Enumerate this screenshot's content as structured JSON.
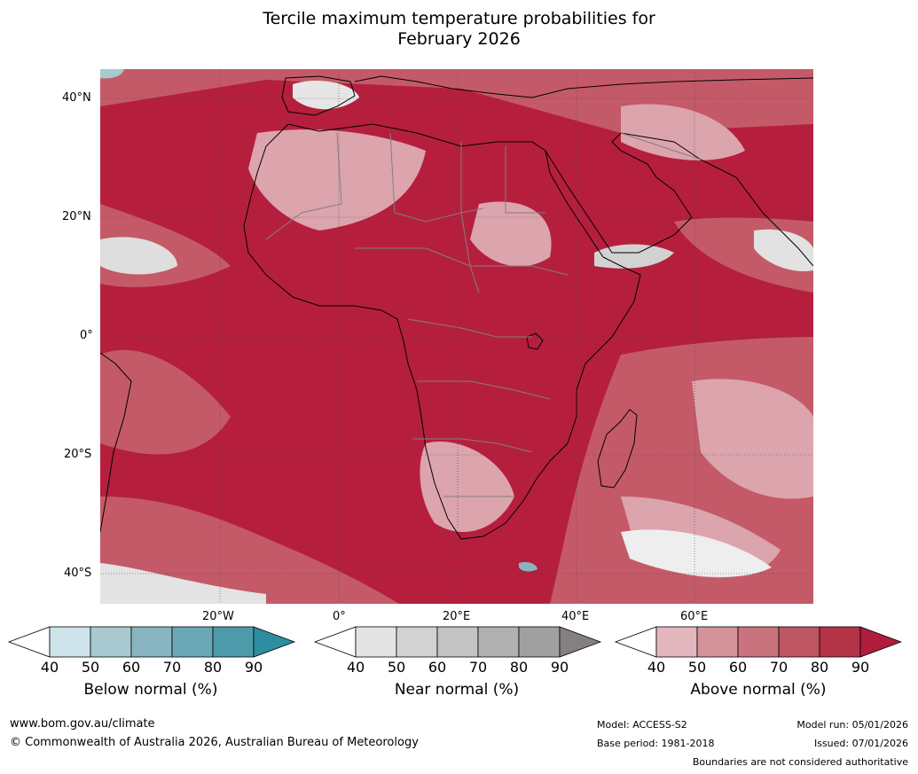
{
  "title_line1": "Tercile maximum temperature probabilities for",
  "title_line2": "February 2026",
  "lat_labels": [
    "40°N",
    "20°N",
    "0°",
    "20°S",
    "40°S"
  ],
  "lon_labels": [
    "20°W",
    "0°",
    "20°E",
    "40°E",
    "60°E"
  ],
  "colorbars": [
    {
      "label": "Below normal (%)",
      "ticks": [
        "40",
        "50",
        "60",
        "70",
        "80",
        "90"
      ],
      "colors": [
        "#ffffff",
        "#cde3e9",
        "#a9c9d0",
        "#89b5c0",
        "#6aa8b6",
        "#4d9aab",
        "#2e8ca3"
      ]
    },
    {
      "label": "Near normal (%)",
      "ticks": [
        "40",
        "50",
        "60",
        "70",
        "80",
        "90"
      ],
      "colors": [
        "#ffffff",
        "#e4e4e4",
        "#d2d2d2",
        "#c3c3c3",
        "#b1b1b1",
        "#a0a0a0",
        "#858080"
      ]
    },
    {
      "label": "Above normal (%)",
      "ticks": [
        "40",
        "50",
        "60",
        "70",
        "80",
        "90"
      ],
      "colors": [
        "#ffffff",
        "#e3b6bd",
        "#d4939b",
        "#c8737d",
        "#bd5562",
        "#b33347",
        "#b01c3b"
      ]
    }
  ],
  "footer": {
    "website": "www.bom.gov.au/climate",
    "copyright": "© Commonwealth of Australia 2026, Australian Bureau of Meteorology",
    "model": "Model: ACCESS-S2",
    "base_period": "Base period: 1981-2018",
    "model_run": "Model run: 05/01/2026",
    "issued": "Issued: 07/01/2026",
    "disclaimer": "Boundaries are not considered authoritative"
  }
}
